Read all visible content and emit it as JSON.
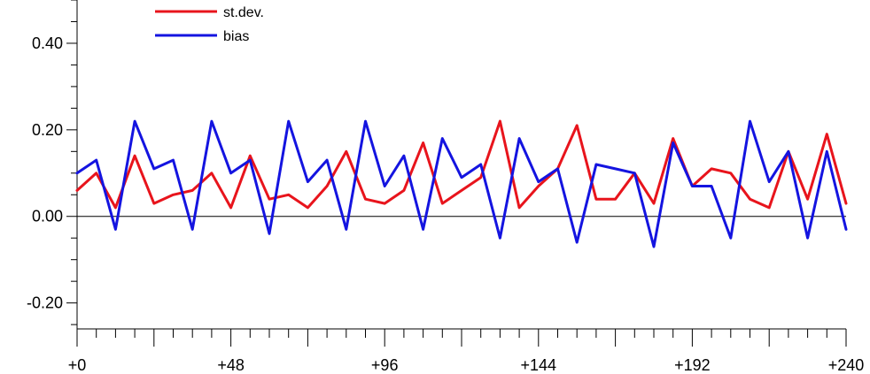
{
  "chart_data": {
    "type": "line",
    "title": "",
    "xlabel": "",
    "ylabel": "",
    "xlim": [
      0,
      240
    ],
    "ylim": [
      -0.26,
      0.5
    ],
    "x_ticks": [
      0,
      48,
      96,
      144,
      192,
      240
    ],
    "x_tick_labels": [
      "+0",
      "+48",
      "+96",
      "+144",
      "+192",
      "+240"
    ],
    "y_ticks": [
      -0.2,
      0.0,
      0.2,
      0.4
    ],
    "y_tick_labels": [
      "-0.20",
      "0.00",
      "0.20",
      "0.40"
    ],
    "zero_line": true,
    "grid": false,
    "legend_position": "top-left",
    "series": [
      {
        "name": "st.dev.",
        "color": "#e8141c",
        "x": [
          0,
          6,
          12,
          18,
          24,
          30,
          36,
          42,
          48,
          54,
          60,
          66,
          72,
          78,
          84,
          90,
          96,
          102,
          108,
          114,
          120,
          126,
          132,
          138,
          144,
          150,
          156,
          162,
          168,
          174,
          180,
          186,
          192,
          198,
          204,
          210,
          216,
          222,
          228,
          234,
          240
        ],
        "y": [
          0.06,
          0.1,
          0.02,
          0.14,
          0.03,
          0.05,
          0.06,
          0.1,
          0.02,
          0.14,
          0.04,
          0.05,
          0.02,
          0.07,
          0.15,
          0.04,
          0.03,
          0.06,
          0.17,
          0.03,
          0.06,
          0.09,
          0.22,
          0.02,
          0.07,
          0.11,
          0.21,
          0.04,
          0.04,
          0.1,
          0.03,
          0.18,
          0.07,
          0.11,
          0.1,
          0.04,
          0.02,
          0.15,
          0.04,
          0.19,
          0.03
        ]
      },
      {
        "name": "bias",
        "color": "#1414e0",
        "x": [
          0,
          6,
          12,
          18,
          24,
          30,
          36,
          42,
          48,
          54,
          60,
          66,
          72,
          78,
          84,
          90,
          96,
          102,
          108,
          114,
          120,
          126,
          132,
          138,
          144,
          150,
          156,
          162,
          168,
          174,
          180,
          186,
          192,
          198,
          204,
          210,
          216,
          222,
          228,
          234,
          240
        ],
        "y": [
          0.1,
          0.13,
          -0.03,
          0.22,
          0.11,
          0.13,
          -0.03,
          0.22,
          0.1,
          0.13,
          -0.04,
          0.22,
          0.08,
          0.13,
          -0.03,
          0.22,
          0.07,
          0.14,
          -0.03,
          0.18,
          0.09,
          0.12,
          -0.05,
          0.18,
          0.08,
          0.11,
          -0.06,
          0.12,
          0.11,
          0.1,
          -0.07,
          0.17,
          0.07,
          0.07,
          -0.05,
          0.22,
          0.08,
          0.15,
          -0.05,
          0.15,
          -0.03
        ]
      }
    ]
  }
}
